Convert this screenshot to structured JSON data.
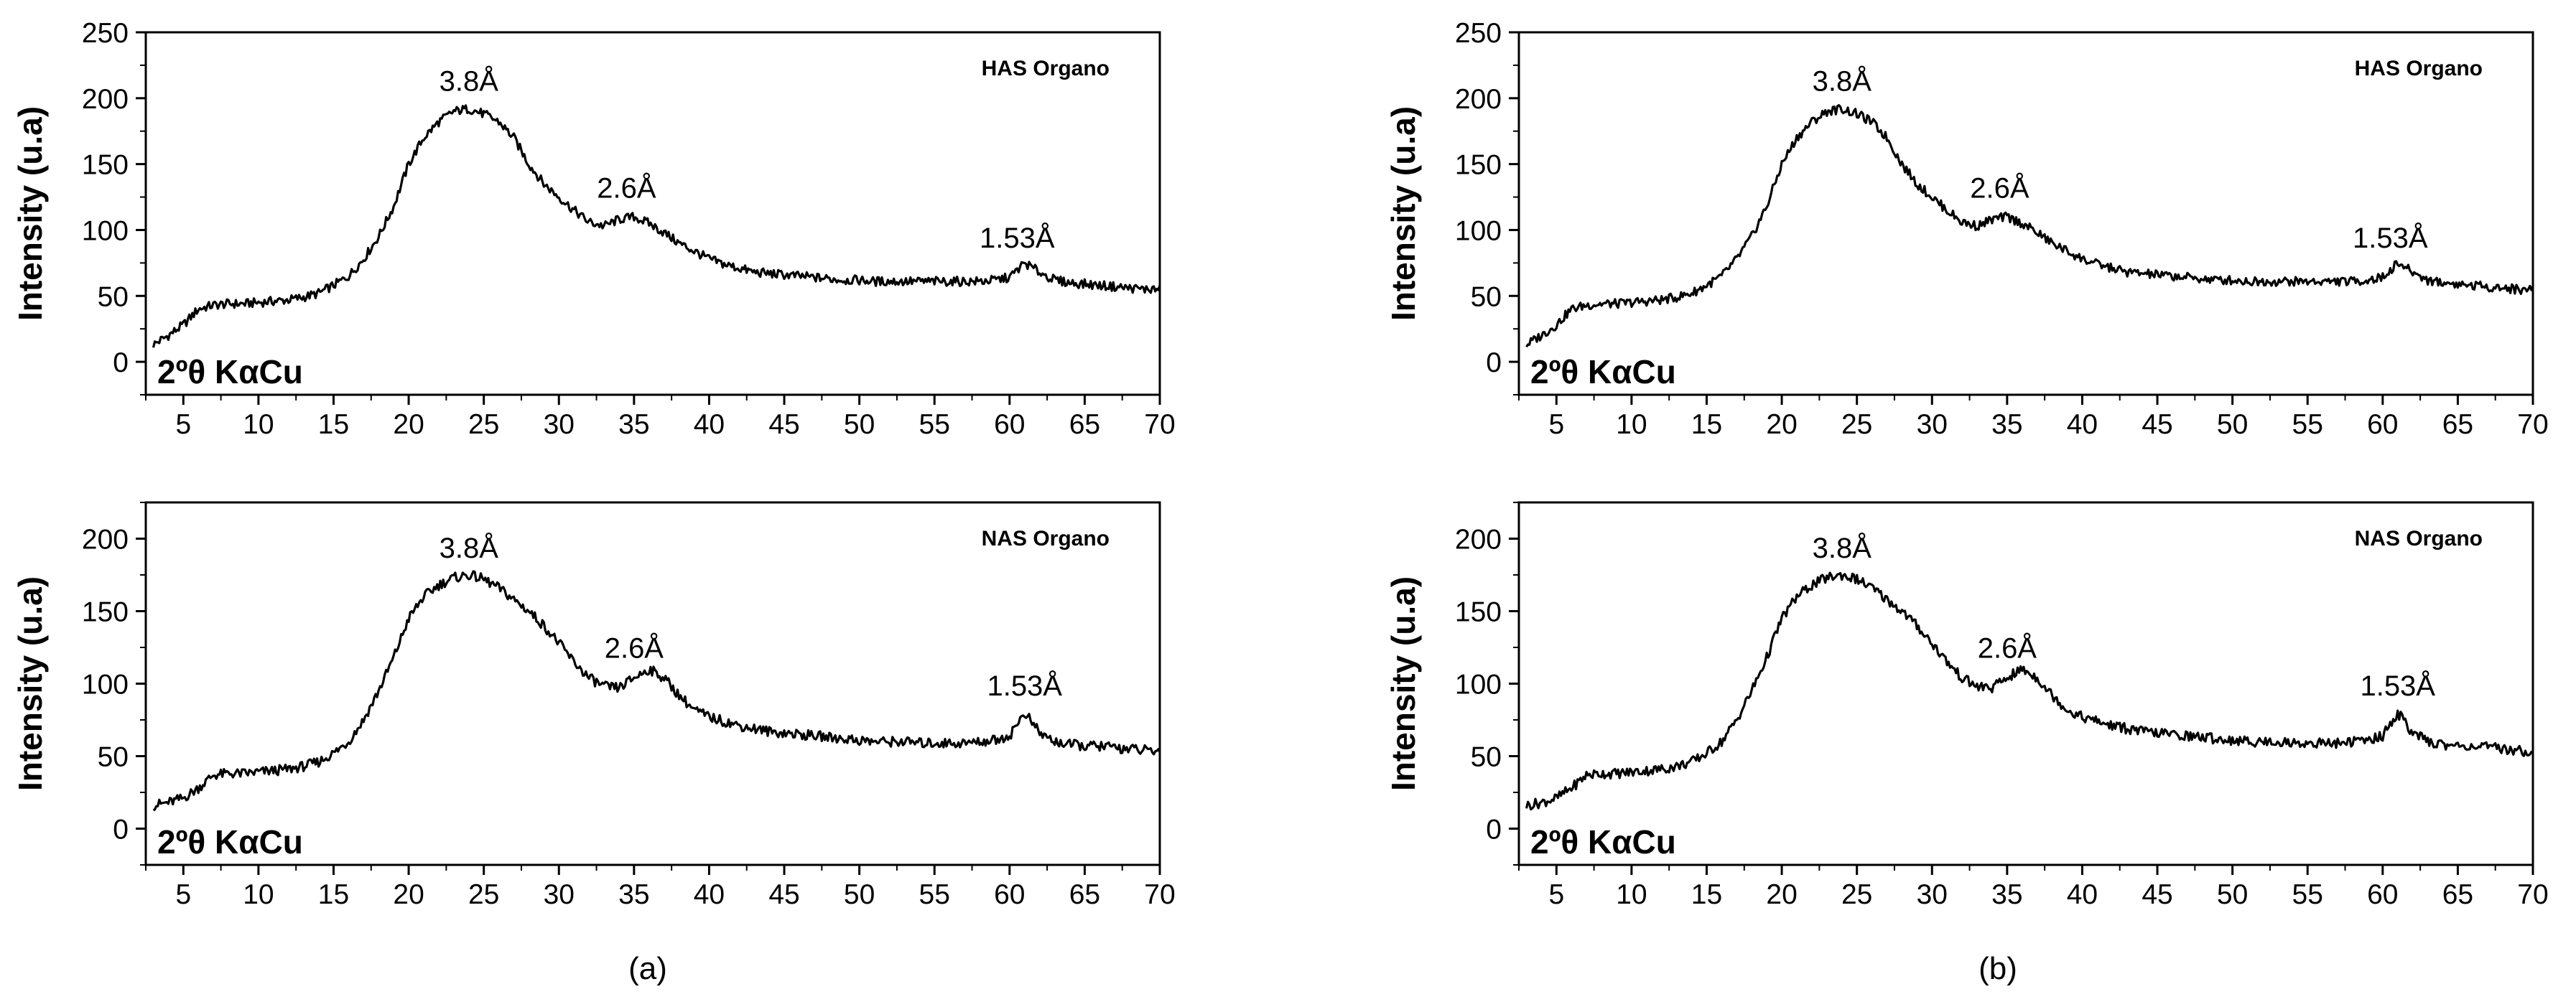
{
  "figure": {
    "panel_labels": [
      "(a)",
      "(b)"
    ]
  },
  "chart_data": [
    {
      "id": "a-top",
      "type": "line",
      "column": 0,
      "row": 0,
      "legend": "HAS Organo",
      "xlabel": "2ºθ KαCu",
      "ylabel": "Intensity (u.a)",
      "xlim": [
        2.5,
        70
      ],
      "ylim": [
        -25,
        250
      ],
      "xticks": [
        5,
        10,
        15,
        20,
        25,
        30,
        35,
        40,
        45,
        50,
        55,
        60,
        65,
        70
      ],
      "yticks": [
        0,
        50,
        100,
        150,
        200,
        250
      ],
      "annotations": [
        {
          "text": "3.8Å",
          "x": 24.0,
          "y": 199
        },
        {
          "text": "2.6Å",
          "x": 34.5,
          "y": 118
        },
        {
          "text": "1.53Å",
          "x": 60.5,
          "y": 80
        }
      ],
      "series": [
        {
          "name": "HAS Organo",
          "x": [
            3,
            4,
            5,
            6,
            7,
            8,
            9,
            10,
            11,
            12,
            13,
            14,
            15,
            16,
            17,
            18,
            19,
            20,
            21,
            22,
            23,
            24,
            25,
            26,
            27,
            28,
            29,
            30,
            31,
            32,
            33,
            34,
            35,
            36,
            37,
            38,
            39,
            40,
            41,
            42,
            43,
            44,
            45,
            46,
            47,
            48,
            49,
            50,
            51,
            52,
            53,
            54,
            55,
            56,
            57,
            58,
            59,
            60,
            61,
            62,
            63,
            64,
            65,
            66,
            67,
            68,
            69,
            70
          ],
          "y": [
            13,
            20,
            28,
            40,
            43,
            44,
            44,
            45,
            46,
            47,
            49,
            52,
            58,
            65,
            78,
            95,
            118,
            150,
            170,
            182,
            190,
            192,
            188,
            182,
            170,
            150,
            135,
            125,
            115,
            106,
            103,
            108,
            110,
            105,
            98,
            90,
            84,
            78,
            74,
            71,
            68,
            67,
            66,
            65,
            64,
            63,
            62,
            62,
            61,
            61,
            61,
            61,
            61,
            61,
            61,
            61,
            62,
            64,
            75,
            68,
            62,
            60,
            59,
            58,
            57,
            56,
            55,
            55
          ]
        }
      ]
    },
    {
      "id": "a-bottom",
      "type": "line",
      "column": 0,
      "row": 1,
      "legend": "NAS Organo",
      "xlabel": "2ºθ KαCu",
      "ylabel": "Intensity (u.a)",
      "xlim": [
        2.5,
        70
      ],
      "ylim": [
        -25,
        225
      ],
      "xticks": [
        5,
        10,
        15,
        20,
        25,
        30,
        35,
        40,
        45,
        50,
        55,
        60,
        65,
        70
      ],
      "yticks": [
        0,
        50,
        100,
        150,
        200
      ],
      "annotations": [
        {
          "text": "3.8Å",
          "x": 24.0,
          "y": 181
        },
        {
          "text": "2.6Å",
          "x": 35.0,
          "y": 112
        },
        {
          "text": "1.53Å",
          "x": 61.0,
          "y": 86
        }
      ],
      "series": [
        {
          "name": "NAS Organo",
          "x": [
            3,
            4,
            5,
            6,
            7,
            8,
            9,
            10,
            11,
            12,
            13,
            14,
            15,
            16,
            17,
            18,
            19,
            20,
            21,
            22,
            23,
            24,
            25,
            26,
            27,
            28,
            29,
            30,
            31,
            32,
            33,
            34,
            35,
            36,
            37,
            38,
            39,
            40,
            41,
            42,
            43,
            44,
            45,
            46,
            47,
            48,
            49,
            50,
            51,
            52,
            53,
            54,
            55,
            56,
            57,
            58,
            59,
            60,
            61,
            62,
            63,
            64,
            65,
            66,
            67,
            68,
            69,
            70
          ],
          "y": [
            16,
            18,
            21,
            28,
            37,
            38,
            38,
            39,
            40,
            41,
            43,
            46,
            52,
            60,
            75,
            95,
            118,
            145,
            160,
            168,
            173,
            175,
            172,
            166,
            158,
            150,
            140,
            128,
            115,
            104,
            98,
            97,
            104,
            110,
            104,
            92,
            82,
            77,
            74,
            71,
            69,
            67,
            66,
            65,
            64,
            63,
            62,
            61,
            60,
            60,
            60,
            59,
            59,
            59,
            59,
            60,
            61,
            64,
            80,
            66,
            60,
            58,
            57,
            57,
            56,
            55,
            54,
            53
          ]
        }
      ]
    },
    {
      "id": "b-top",
      "type": "line",
      "column": 1,
      "row": 0,
      "legend": "HAS Organo",
      "xlabel": "2ºθ KαCu",
      "ylabel": "Intensity (u.a)",
      "xlim": [
        2.5,
        70
      ],
      "ylim": [
        -25,
        250
      ],
      "xticks": [
        5,
        10,
        15,
        20,
        25,
        30,
        35,
        40,
        45,
        50,
        55,
        60,
        65,
        70
      ],
      "yticks": [
        0,
        50,
        100,
        150,
        200,
        250
      ],
      "annotations": [
        {
          "text": "3.8Å",
          "x": 24.0,
          "y": 199
        },
        {
          "text": "2.6Å",
          "x": 34.5,
          "y": 118
        },
        {
          "text": "1.53Å",
          "x": 60.5,
          "y": 80
        }
      ],
      "series": [
        {
          "name": "HAS Organo",
          "x": [
            3,
            4,
            5,
            6,
            7,
            8,
            9,
            10,
            11,
            12,
            13,
            14,
            15,
            16,
            17,
            18,
            19,
            20,
            21,
            22,
            23,
            24,
            25,
            26,
            27,
            28,
            29,
            30,
            31,
            32,
            33,
            34,
            35,
            36,
            37,
            38,
            39,
            40,
            41,
            42,
            43,
            44,
            45,
            46,
            47,
            48,
            49,
            50,
            51,
            52,
            53,
            54,
            55,
            56,
            57,
            58,
            59,
            60,
            61,
            62,
            63,
            64,
            65,
            66,
            67,
            68,
            69,
            70
          ],
          "y": [
            13,
            20,
            28,
            40,
            43,
            44,
            44,
            45,
            46,
            47,
            49,
            52,
            58,
            65,
            78,
            95,
            118,
            150,
            170,
            182,
            190,
            192,
            188,
            182,
            170,
            150,
            135,
            125,
            115,
            106,
            103,
            108,
            110,
            105,
            98,
            90,
            84,
            78,
            74,
            71,
            68,
            67,
            66,
            65,
            64,
            63,
            62,
            62,
            61,
            61,
            61,
            61,
            61,
            61,
            61,
            61,
            62,
            64,
            75,
            68,
            62,
            60,
            59,
            58,
            57,
            56,
            55,
            55
          ]
        }
      ]
    },
    {
      "id": "b-bottom",
      "type": "line",
      "column": 1,
      "row": 1,
      "legend": "NAS Organo",
      "xlabel": "2ºθ KαCu",
      "ylabel": "Intensity (u.a)",
      "xlim": [
        2.5,
        70
      ],
      "ylim": [
        -25,
        225
      ],
      "xticks": [
        5,
        10,
        15,
        20,
        25,
        30,
        35,
        40,
        45,
        50,
        55,
        60,
        65,
        70
      ],
      "yticks": [
        0,
        50,
        100,
        150,
        200
      ],
      "annotations": [
        {
          "text": "3.8Å",
          "x": 24.0,
          "y": 181
        },
        {
          "text": "2.6Å",
          "x": 35.0,
          "y": 112
        },
        {
          "text": "1.53Å",
          "x": 61.0,
          "y": 86
        }
      ],
      "series": [
        {
          "name": "NAS Organo",
          "x": [
            3,
            4,
            5,
            6,
            7,
            8,
            9,
            10,
            11,
            12,
            13,
            14,
            15,
            16,
            17,
            18,
            19,
            20,
            21,
            22,
            23,
            24,
            25,
            26,
            27,
            28,
            29,
            30,
            31,
            32,
            33,
            34,
            35,
            36,
            37,
            38,
            39,
            40,
            41,
            42,
            43,
            44,
            45,
            46,
            47,
            48,
            49,
            50,
            51,
            52,
            53,
            54,
            55,
            56,
            57,
            58,
            59,
            60,
            61,
            62,
            63,
            64,
            65,
            66,
            67,
            68,
            69,
            70
          ],
          "y": [
            16,
            18,
            21,
            28,
            37,
            38,
            38,
            39,
            40,
            41,
            43,
            46,
            52,
            60,
            75,
            95,
            118,
            145,
            160,
            168,
            173,
            175,
            172,
            166,
            158,
            150,
            140,
            128,
            115,
            104,
            98,
            97,
            104,
            110,
            104,
            92,
            82,
            77,
            74,
            71,
            69,
            67,
            66,
            65,
            64,
            63,
            62,
            61,
            60,
            60,
            60,
            59,
            59,
            59,
            59,
            60,
            61,
            64,
            80,
            66,
            60,
            58,
            57,
            57,
            56,
            55,
            54,
            53
          ]
        }
      ]
    }
  ]
}
